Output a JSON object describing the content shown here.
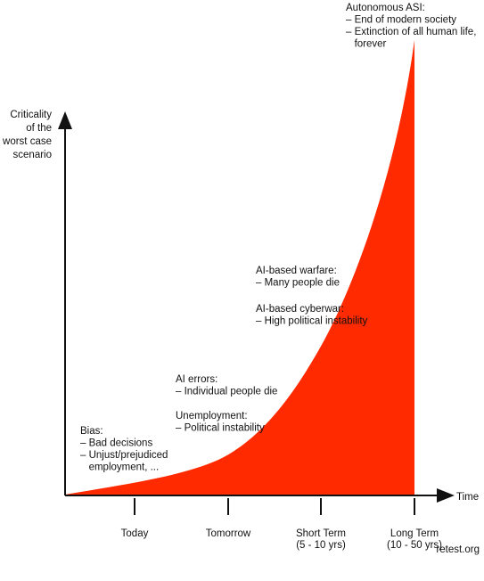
{
  "chart_data": {
    "type": "area",
    "title": "",
    "ylabel": [
      "Criticality",
      "of the",
      "worst case",
      "scenario"
    ],
    "xlabel": "Time",
    "color": "#ff2a00",
    "x_ticks": [
      {
        "label": [
          "Today"
        ]
      },
      {
        "label": [
          "Tomorrow"
        ]
      },
      {
        "label": [
          "Short Term",
          "(5 - 10 yrs)"
        ]
      },
      {
        "label": [
          "Long Term",
          "(10 - 50 yrs)"
        ]
      }
    ],
    "annotations": [
      {
        "id": "bias",
        "lines": [
          "Bias:",
          "– Bad decisions",
          "– Unjust/prejudiced",
          "   employment, ..."
        ]
      },
      {
        "id": "ai-errors",
        "lines": [
          "AI errors:",
          "– Individual people die"
        ]
      },
      {
        "id": "unemployment",
        "lines": [
          "Unemployment:",
          "– Political instability"
        ]
      },
      {
        "id": "warfare",
        "lines": [
          "AI-based warfare:",
          "– Many people die"
        ]
      },
      {
        "id": "cyberwar",
        "lines": [
          "AI-based cyberwar:",
          "– High political instability"
        ]
      },
      {
        "id": "asi",
        "lines": [
          "Autonomous ASI:",
          "– End of modern society",
          "– Extinction of all human life,",
          "   forever"
        ]
      }
    ]
  },
  "footer": {
    "credit": "retest.org"
  }
}
